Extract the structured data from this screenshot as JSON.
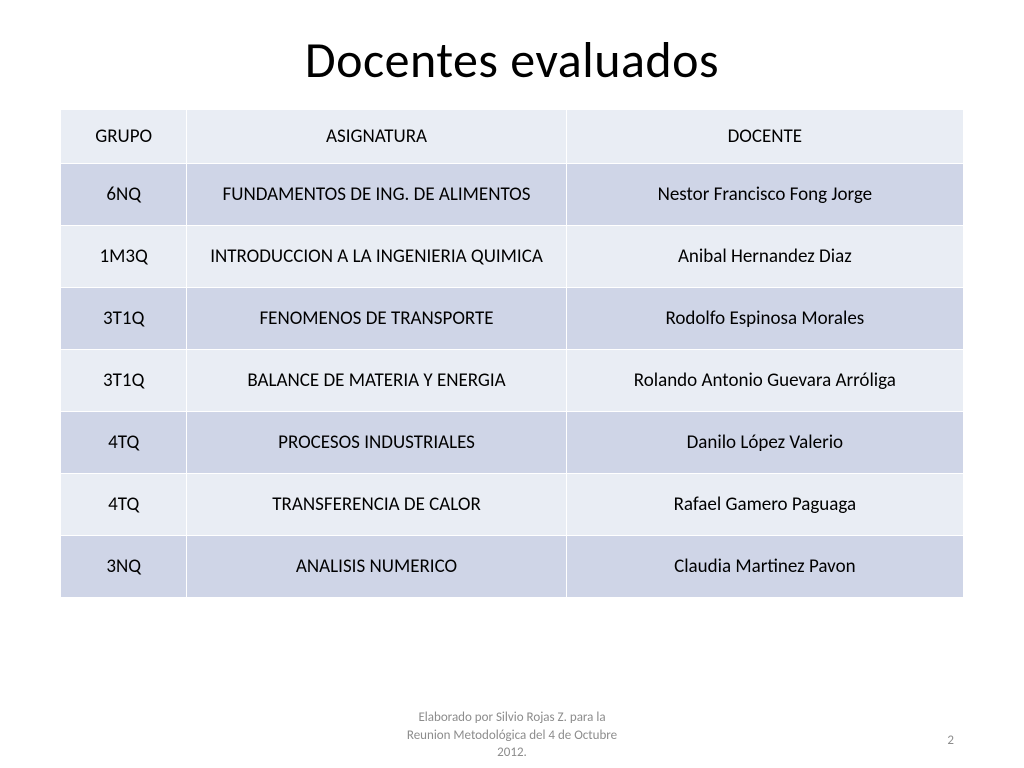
{
  "title": "Docentes evaluados",
  "table": {
    "columns": [
      "GRUPO",
      "ASIGNATURA",
      "DOCENTE"
    ],
    "col_widths_pct": [
      14,
      42,
      44
    ],
    "header_bg": "#e9edf4",
    "row_bg_odd": "#cfd5e7",
    "row_bg_even": "#e9edf4",
    "border_color": "#ffffff",
    "header_fontsize": 19,
    "cell_fontsize": 19,
    "rows": [
      [
        "6NQ",
        "FUNDAMENTOS DE ING. DE ALIMENTOS",
        "Nestor  Francisco Fong Jorge"
      ],
      [
        "1M3Q",
        "INTRODUCCION A LA INGENIERIA QUIMICA",
        "Anibal Hernandez Diaz"
      ],
      [
        "3T1Q",
        "FENOMENOS DE TRANSPORTE",
        "Rodolfo Espinosa Morales"
      ],
      [
        "3T1Q",
        "BALANCE DE MATERIA Y ENERGIA",
        "Rolando Antonio Guevara Arróliga"
      ],
      [
        "4TQ",
        "PROCESOS INDUSTRIALES",
        "Danilo López Valerio"
      ],
      [
        "4TQ",
        "TRANSFERENCIA DE CALOR",
        "Rafael Gamero Paguaga"
      ],
      [
        "3NQ",
        "ANALISIS NUMERICO",
        "Claudia Martinez Pavon"
      ]
    ]
  },
  "footer": {
    "line1": "Elaborado por Silvio Rojas Z. para la",
    "line2": "Reunion Metodológica del 4 de Octubre",
    "line3": "2012."
  },
  "page_number": "2",
  "colors": {
    "background": "#ffffff",
    "text": "#000000",
    "footer_text": "#8c8c8c"
  },
  "typography": {
    "title_fontsize": 50,
    "footer_fontsize": 13,
    "font_family": "Calibri"
  }
}
